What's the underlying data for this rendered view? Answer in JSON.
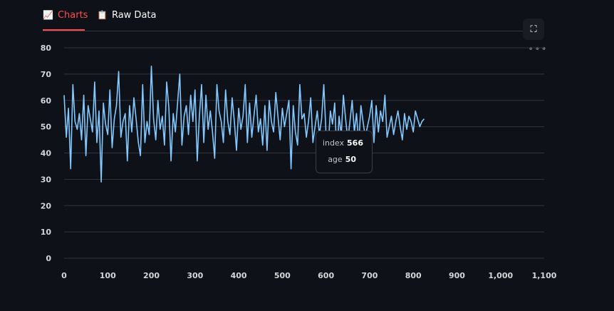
{
  "tabs": [
    {
      "icon": "📈",
      "icon_name": "chart-increasing-icon",
      "label": "Charts",
      "active": true
    },
    {
      "icon": "📋",
      "icon_name": "clipboard-icon",
      "label": "Raw Data",
      "active": false
    }
  ],
  "toolbar": {
    "fullscreen_icon": "⛶",
    "more_icon": "•••"
  },
  "colors": {
    "accent": "#ff4b4b",
    "line": "#83c9ff",
    "background": "#0e1117",
    "grid": "#31333f"
  },
  "tooltip": {
    "x_label": "index",
    "x_value": "566",
    "y_label": "age",
    "y_value": "50"
  },
  "chart_data": {
    "type": "line",
    "title": "",
    "xlabel": "",
    "ylabel": "",
    "xlim": [
      0,
      1100
    ],
    "ylim": [
      0,
      80
    ],
    "x_ticks": [
      0,
      100,
      200,
      300,
      400,
      500,
      600,
      700,
      800,
      900,
      1000,
      1100
    ],
    "x_tick_labels": [
      "0",
      "100",
      "200",
      "300",
      "400",
      "500",
      "600",
      "700",
      "800",
      "900",
      "1,000",
      "1,100"
    ],
    "y_ticks": [
      0,
      10,
      20,
      30,
      40,
      50,
      60,
      70,
      80
    ],
    "grid": true,
    "series": [
      {
        "x_start": 0,
        "x_step": 5,
        "values": [
          62,
          46,
          57,
          34,
          66,
          52,
          49,
          55,
          45,
          62,
          39,
          58,
          53,
          48,
          67,
          44,
          56,
          29,
          59,
          51,
          47,
          64,
          42,
          53,
          58,
          71,
          46,
          52,
          55,
          37,
          58,
          48,
          61,
          53,
          44,
          39,
          66,
          44,
          52,
          47,
          73,
          53,
          45,
          60,
          49,
          54,
          43,
          67,
          57,
          37,
          55,
          48,
          59,
          70,
          43,
          54,
          58,
          47,
          62,
          52,
          64,
          37,
          54,
          66,
          44,
          62,
          49,
          56,
          48,
          38,
          66,
          56,
          52,
          44,
          64,
          52,
          47,
          61,
          52,
          41,
          57,
          49,
          54,
          66,
          44,
          59,
          46,
          54,
          62,
          48,
          53,
          43,
          58,
          41,
          60,
          52,
          48,
          63,
          54,
          45,
          57,
          50,
          55,
          60,
          34,
          58,
          48,
          43,
          66,
          53,
          55,
          46,
          52,
          61,
          44,
          50,
          56,
          47,
          53,
          66,
          48,
          42,
          56,
          51,
          59,
          38,
          54,
          47,
          62,
          53,
          45,
          52,
          60,
          48,
          55,
          43,
          58,
          52,
          46,
          50,
          54,
          60,
          44,
          58,
          48,
          56,
          52,
          62,
          46,
          50,
          54,
          47,
          52,
          56,
          50,
          45,
          55,
          49,
          54,
          52,
          48,
          56,
          53,
          50,
          52,
          53
        ]
      }
    ]
  }
}
